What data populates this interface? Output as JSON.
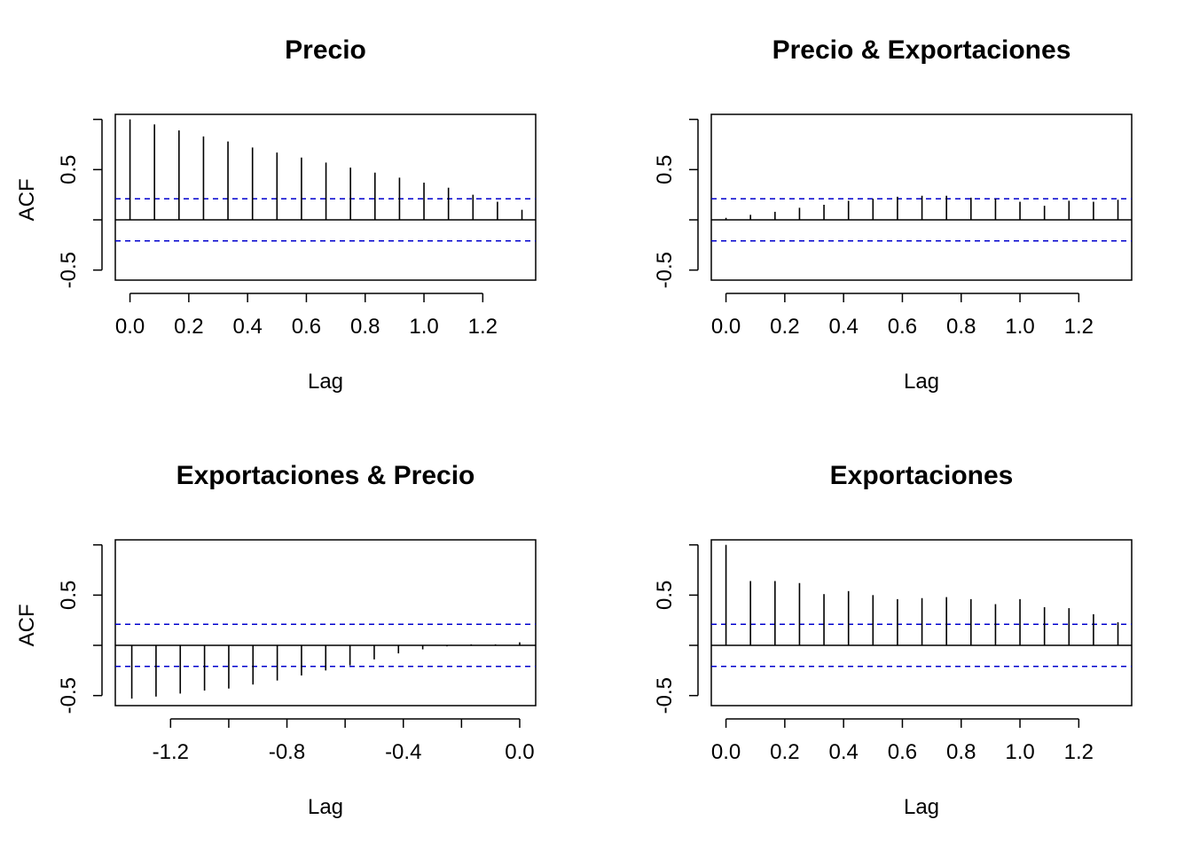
{
  "chart_data": [
    {
      "type": "bar",
      "title": "Precio",
      "xlabel": "Lag",
      "ylabel": "ACF",
      "xlim": [
        -0.05,
        1.38
      ],
      "ylim": [
        -0.6,
        1.05
      ],
      "xticks": [
        "0.0",
        "0.2",
        "0.4",
        "0.6",
        "0.8",
        "1.0",
        "1.2"
      ],
      "yticks": [
        "-0.5",
        "0.5"
      ],
      "ci": 0.21,
      "x": [
        0,
        0.0833,
        0.1667,
        0.25,
        0.3333,
        0.4167,
        0.5,
        0.5833,
        0.6667,
        0.75,
        0.8333,
        0.9167,
        1.0,
        1.0833,
        1.1667,
        1.25,
        1.3333
      ],
      "values": [
        1.0,
        0.95,
        0.89,
        0.83,
        0.78,
        0.72,
        0.67,
        0.62,
        0.57,
        0.52,
        0.47,
        0.42,
        0.37,
        0.32,
        0.25,
        0.18,
        0.1
      ]
    },
    {
      "type": "bar",
      "title": "Precio & Exportaciones",
      "xlabel": "Lag",
      "ylabel": "",
      "xlim": [
        -0.05,
        1.38
      ],
      "ylim": [
        -0.6,
        1.05
      ],
      "xticks": [
        "0.0",
        "0.2",
        "0.4",
        "0.6",
        "0.8",
        "1.0",
        "1.2"
      ],
      "yticks": [
        "-0.5",
        "0.5"
      ],
      "ci": 0.21,
      "x": [
        0,
        0.0833,
        0.1667,
        0.25,
        0.3333,
        0.4167,
        0.5,
        0.5833,
        0.6667,
        0.75,
        0.8333,
        0.9167,
        1.0,
        1.0833,
        1.1667,
        1.25,
        1.3333
      ],
      "values": [
        0.02,
        0.05,
        0.08,
        0.12,
        0.15,
        0.19,
        0.21,
        0.23,
        0.24,
        0.24,
        0.22,
        0.21,
        0.18,
        0.14,
        0.19,
        0.18,
        0.2
      ]
    },
    {
      "type": "bar",
      "title": "Exportaciones & Precio",
      "xlabel": "Lag",
      "ylabel": "ACF",
      "xlim": [
        -1.39,
        0.055
      ],
      "ylim": [
        -0.6,
        1.05
      ],
      "xticks": [
        "-1.2",
        "-0.8",
        "-0.4",
        "0.0"
      ],
      "yticks": [
        "-0.5",
        "0.5"
      ],
      "ci": 0.21,
      "x": [
        -1.3333,
        -1.25,
        -1.1667,
        -1.0833,
        -1.0,
        -0.9167,
        -0.8333,
        -0.75,
        -0.6667,
        -0.5833,
        -0.5,
        -0.4167,
        -0.3333,
        -0.25,
        -0.1667,
        -0.0833,
        0
      ],
      "values": [
        -0.53,
        -0.51,
        -0.48,
        -0.45,
        -0.43,
        -0.39,
        -0.35,
        -0.3,
        -0.25,
        -0.2,
        -0.14,
        -0.08,
        -0.04,
        -0.01,
        0.01,
        0.01,
        0.03
      ]
    },
    {
      "type": "bar",
      "title": "Exportaciones",
      "xlabel": "Lag",
      "ylabel": "",
      "xlim": [
        -0.05,
        1.38
      ],
      "ylim": [
        -0.6,
        1.05
      ],
      "xticks": [
        "0.0",
        "0.2",
        "0.4",
        "0.6",
        "0.8",
        "1.0",
        "1.2"
      ],
      "yticks": [
        "-0.5",
        "0.5"
      ],
      "ci": 0.21,
      "x": [
        0,
        0.0833,
        0.1667,
        0.25,
        0.3333,
        0.4167,
        0.5,
        0.5833,
        0.6667,
        0.75,
        0.8333,
        0.9167,
        1.0,
        1.0833,
        1.1667,
        1.25,
        1.3333
      ],
      "values": [
        1.0,
        0.64,
        0.64,
        0.62,
        0.51,
        0.54,
        0.5,
        0.46,
        0.47,
        0.48,
        0.46,
        0.41,
        0.46,
        0.38,
        0.37,
        0.31,
        0.23
      ]
    }
  ],
  "colors": {
    "ci_line": "#0000CD",
    "bars": "#000000"
  }
}
